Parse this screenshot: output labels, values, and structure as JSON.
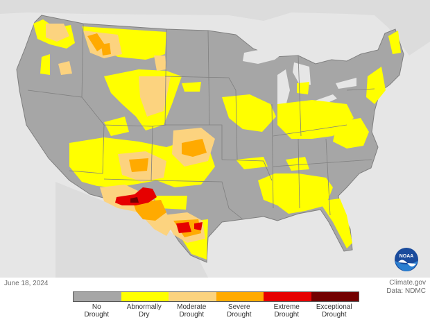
{
  "date": "June 18, 2024",
  "credit": {
    "site": "Climate.gov",
    "source": "Data: NDMC"
  },
  "logo_text": "NOAA",
  "legend": [
    {
      "label_line1": "No",
      "label_line2": "Drought",
      "color": "#a6a6a6"
    },
    {
      "label_line1": "Abnormally",
      "label_line2": "Dry",
      "color": "#ffff00"
    },
    {
      "label_line1": "Moderate",
      "label_line2": "Drought",
      "color": "#fcd37f"
    },
    {
      "label_line1": "Severe",
      "label_line2": "Drought",
      "color": "#ffaa00"
    },
    {
      "label_line1": "Extreme",
      "label_line2": "Drought",
      "color": "#e60000"
    },
    {
      "label_line1": "Exceptional",
      "label_line2": "Drought",
      "color": "#730000"
    }
  ],
  "colors": {
    "background": "#e6e6e6",
    "state_border": "#7f7f7f"
  }
}
